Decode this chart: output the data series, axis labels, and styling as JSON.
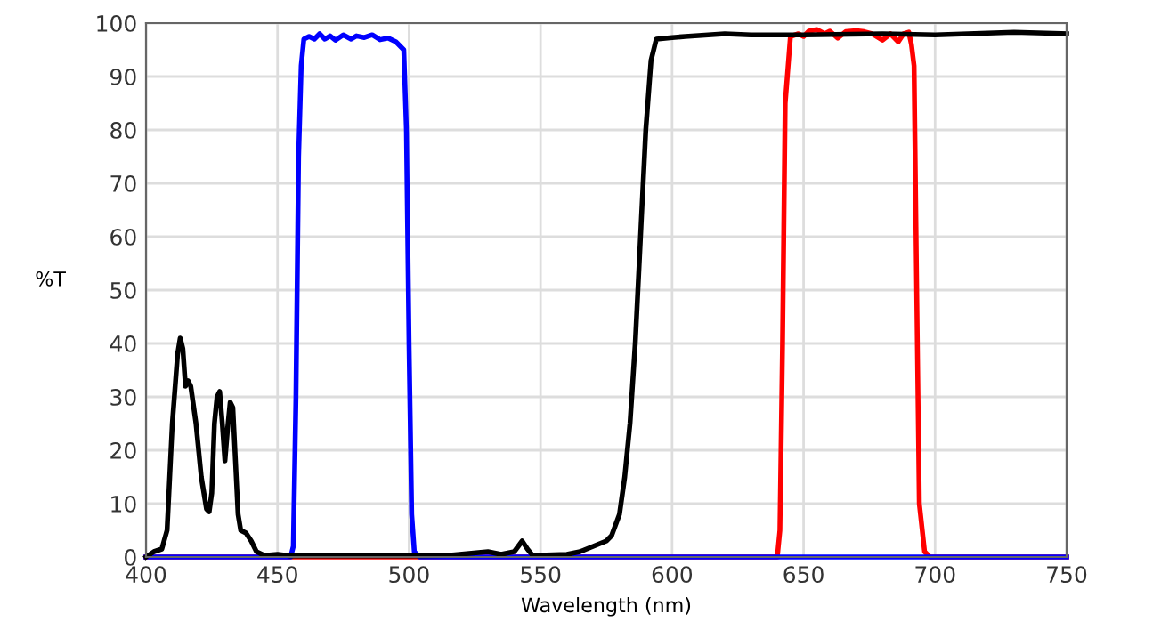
{
  "chart_data": {
    "type": "line",
    "xlabel": "Wavelength (nm)",
    "ylabel": "%T",
    "xlim": [
      400,
      750
    ],
    "xticks": [
      400,
      450,
      500,
      550,
      600,
      650,
      700,
      750
    ],
    "ylim": [
      0,
      100
    ],
    "yticks": [
      0,
      10,
      20,
      30,
      40,
      50,
      60,
      70,
      80,
      90,
      100
    ],
    "grid": true,
    "marker": "none",
    "line_style": "solid",
    "series": [
      {
        "color": "#ff0000",
        "x": [
          400,
          640,
          641,
          642,
          643,
          645,
          648,
          650,
          652,
          655,
          658,
          660,
          663,
          666,
          670,
          673,
          676,
          680,
          683,
          686,
          688,
          690,
          691,
          692,
          693,
          694,
          696,
          698,
          750
        ],
        "values": [
          0,
          0,
          5,
          40,
          85,
          97.5,
          98,
          97.5,
          98.5,
          98.8,
          98,
          98.5,
          97.2,
          98.4,
          98.6,
          98.4,
          98,
          96.8,
          98,
          96.5,
          98,
          98.3,
          96,
          92,
          50,
          10,
          1,
          0,
          0
        ]
      },
      {
        "color": "#0000ff",
        "x": [
          400,
          455,
          456,
          457,
          458,
          459,
          460,
          462,
          464,
          466,
          468,
          470,
          472,
          475,
          478,
          480,
          483,
          486,
          489,
          492,
          495,
          497,
          498,
          499,
          500,
          501,
          502,
          504,
          640,
          695,
          750
        ],
        "values": [
          0,
          0,
          2,
          30,
          75,
          92,
          97,
          97.5,
          97,
          98,
          97,
          97.6,
          96.8,
          97.8,
          97,
          97.6,
          97.3,
          97.8,
          96.9,
          97.2,
          96.5,
          95.5,
          95,
          80,
          40,
          8,
          1,
          0,
          0,
          0,
          0
        ]
      },
      {
        "color": "#000000",
        "x": [
          400,
          403,
          406,
          408,
          410,
          412,
          413,
          414,
          415,
          416,
          417,
          419,
          421,
          423,
          424,
          425,
          426,
          427,
          428,
          429,
          430,
          431,
          432,
          433,
          434,
          435,
          436,
          438,
          440,
          442,
          445,
          450,
          455,
          500,
          515,
          530,
          535,
          540,
          543,
          545,
          547,
          560,
          565,
          570,
          575,
          577,
          580,
          582,
          584,
          586,
          588,
          590,
          592,
          594,
          600,
          605,
          620,
          630,
          650,
          680,
          700,
          730,
          750
        ],
        "values": [
          0,
          1,
          1.5,
          5,
          25,
          38,
          41,
          39,
          32,
          33,
          32,
          25,
          15,
          9,
          8.5,
          12,
          25,
          30,
          31,
          25,
          18,
          24,
          29,
          28,
          18,
          8,
          5,
          4.5,
          3,
          1,
          0.3,
          0.5,
          0.2,
          0.2,
          0.3,
          1,
          0.5,
          1,
          3,
          1.5,
          0.3,
          0.5,
          1,
          2,
          3,
          4,
          8,
          15,
          25,
          40,
          60,
          80,
          93,
          97,
          97.3,
          97.5,
          98,
          97.8,
          97.8,
          98,
          97.8,
          98.3,
          98
        ]
      }
    ]
  }
}
